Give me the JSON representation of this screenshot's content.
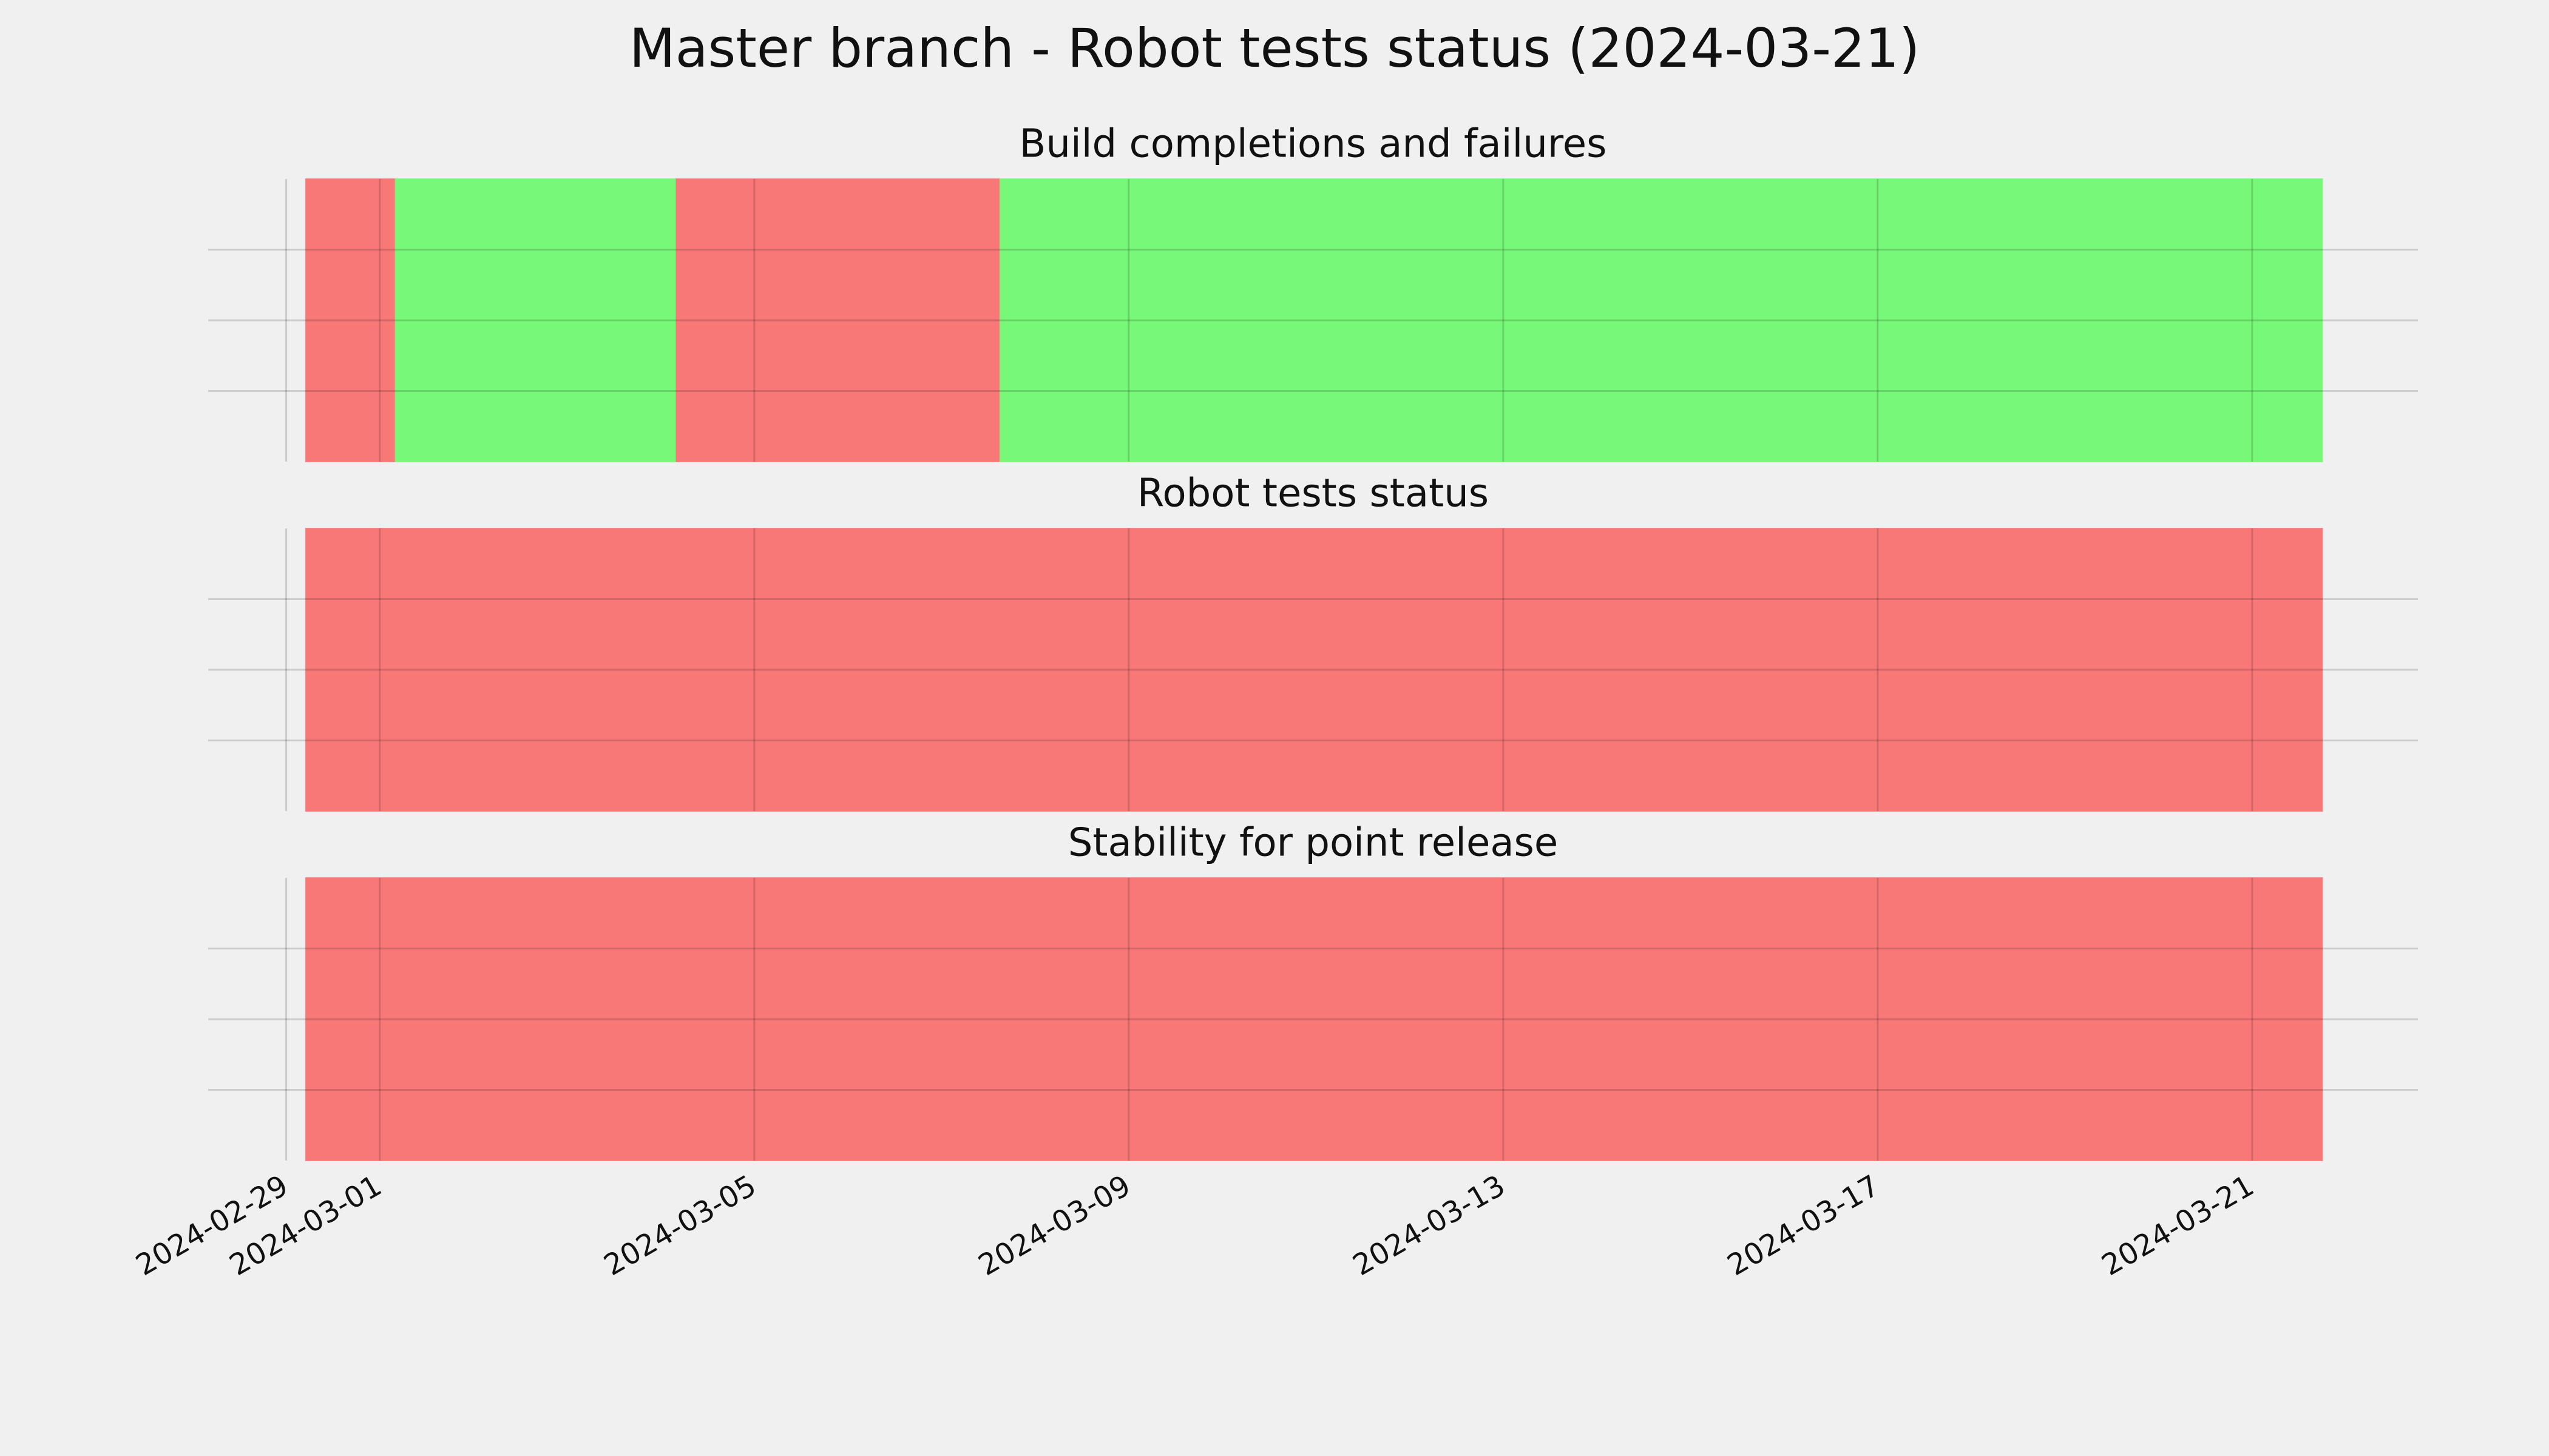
{
  "title": "Master branch - Robot tests status (2024-03-21)",
  "chart_data": [
    {
      "type": "timespan",
      "title": "Build completions and failures",
      "spans": [
        {
          "start": "2024-02-29T05:00",
          "end": "2024-03-01T04:00",
          "color": "#f87878"
        },
        {
          "start": "2024-03-01T04:00",
          "end": "2024-03-04T04:00",
          "color": "#78f878"
        },
        {
          "start": "2024-03-04T04:00",
          "end": "2024-03-07T15:00",
          "color": "#f87878"
        },
        {
          "start": "2024-03-07T15:00",
          "end": "2024-03-21T18:00",
          "color": "#78f878"
        }
      ],
      "xlim": [
        "2024-02-28T04:00",
        "2024-03-22T18:30"
      ],
      "xticks": [
        "2024-02-29",
        "2024-03-01",
        "2024-03-05",
        "2024-03-09",
        "2024-03-13",
        "2024-03-17",
        "2024-03-21"
      ],
      "ylim": [
        0,
        1
      ],
      "yticks": [
        0.25,
        0.5,
        0.75
      ],
      "grid": true
    },
    {
      "type": "timespan",
      "title": "Robot tests status",
      "spans": [
        {
          "start": "2024-02-29T05:00",
          "end": "2024-03-21T18:00",
          "color": "#f87878"
        }
      ],
      "xlim": [
        "2024-02-28T04:00",
        "2024-03-22T18:30"
      ],
      "xticks": [
        "2024-02-29",
        "2024-03-01",
        "2024-03-05",
        "2024-03-09",
        "2024-03-13",
        "2024-03-17",
        "2024-03-21"
      ],
      "ylim": [
        0,
        1
      ],
      "yticks": [
        0.25,
        0.5,
        0.75
      ],
      "grid": true
    },
    {
      "type": "timespan",
      "title": "Stability for point release",
      "spans": [
        {
          "start": "2024-02-29T05:00",
          "end": "2024-03-21T18:00",
          "color": "#f87878"
        }
      ],
      "xlim": [
        "2024-02-28T04:00",
        "2024-03-22T18:30"
      ],
      "xticks": [
        "2024-02-29",
        "2024-03-01",
        "2024-03-05",
        "2024-03-09",
        "2024-03-13",
        "2024-03-17",
        "2024-03-21"
      ],
      "ylim": [
        0,
        1
      ],
      "yticks": [
        0.25,
        0.5,
        0.75
      ],
      "grid": true
    }
  ]
}
